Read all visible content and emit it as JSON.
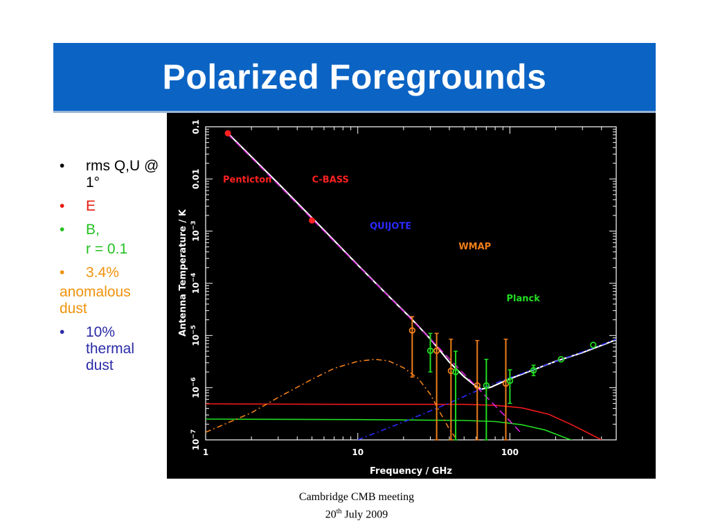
{
  "slide": {
    "title": "Polarized Foregrounds",
    "footer_line1": "Cambridge CMB meeting",
    "footer_day": "20",
    "footer_sup": "th",
    "footer_rest": " July 2009"
  },
  "bullets": [
    {
      "text": "rms Q,U @ 1°",
      "color": "#000000"
    },
    {
      "text": "E",
      "color": "#e8180e"
    },
    {
      "text": "B,",
      "color": "#22c020",
      "continuation": "r = 0.1"
    },
    {
      "text": "3.4%",
      "color": "#f0920a",
      "continuation": "anomalous dust"
    },
    {
      "text": "10% thermal dust",
      "color": "#2a2aa8"
    }
  ],
  "chart_data": {
    "type": "line",
    "xlabel": "Frequency / GHz",
    "ylabel": "Antenna Temperature / K",
    "xscale": "log",
    "yscale": "log",
    "xlim": [
      1,
      500
    ],
    "ylim": [
      1e-07,
      0.1
    ],
    "x_ticks": [
      {
        "value": 1,
        "label": "1"
      },
      {
        "value": 10,
        "label": "10"
      },
      {
        "value": 100,
        "label": "100"
      }
    ],
    "y_ticks": [
      {
        "value": 0.1,
        "label": "0.1",
        "sup": ""
      },
      {
        "value": 0.01,
        "label": "0.01",
        "sup": ""
      },
      {
        "value": 0.001,
        "label": "10",
        "sup": "−3"
      },
      {
        "value": 0.0001,
        "label": "10",
        "sup": "−4"
      },
      {
        "value": 1e-05,
        "label": "10",
        "sup": "−5"
      },
      {
        "value": 1e-06,
        "label": "10",
        "sup": "−6"
      },
      {
        "value": 1e-07,
        "label": "10",
        "sup": "−7"
      }
    ],
    "experiment_labels": [
      {
        "text": "Penticton",
        "x": 1.3,
        "y": 0.0085,
        "color": "#ff2020"
      },
      {
        "text": "C-BASS",
        "x": 5.0,
        "y": 0.0085,
        "color": "#ff2020"
      },
      {
        "text": "QUIJOTE",
        "x": 12,
        "y": 0.0011,
        "color": "#2a2aff"
      },
      {
        "text": "WMAP",
        "x": 46,
        "y": 0.00045,
        "color": "#f07f1a"
      },
      {
        "text": "Planck",
        "x": 95,
        "y": 4.5e-05,
        "color": "#22dd22"
      }
    ],
    "series": [
      {
        "style": "total",
        "color": "#ffffff",
        "x": [
          1.4,
          3,
          6,
          10,
          15,
          22,
          30,
          40,
          50,
          60,
          65,
          75,
          90,
          110,
          140,
          200,
          300,
          500
        ],
        "y": [
          0.075,
          0.0082,
          0.00105,
          0.000225,
          6.8e-05,
          2.25e-05,
          8.6e-06,
          3.1e-06,
          1.62e-06,
          1.06e-06,
          9.4e-07,
          1.02e-06,
          1.3e-06,
          1.65e-06,
          2.15e-06,
          3.2e-06,
          4.7e-06,
          8.3e-06
        ]
      },
      {
        "style": "synchrotron",
        "color": "#dd22dd",
        "x": [
          1.4,
          3,
          6,
          10,
          20,
          30,
          45,
          60,
          80,
          100,
          120
        ],
        "y": [
          0.072,
          0.0078,
          0.001,
          0.00022,
          2.9e-05,
          8.6e-06,
          2.5e-06,
          1.06e-06,
          4.5e-07,
          2.3e-07,
          1.3e-07
        ]
      },
      {
        "style": "anomalous-dust",
        "color": "#f07f1a",
        "x": [
          1,
          2,
          3,
          5,
          7,
          10,
          13,
          16,
          20,
          25,
          30,
          35,
          40,
          45
        ],
        "y": [
          1.4e-07,
          3.3e-07,
          6.5e-07,
          1.45e-06,
          2.35e-06,
          3.2e-06,
          3.5e-06,
          3.25e-06,
          2.4e-06,
          1.5e-06,
          7.5e-07,
          3.2e-07,
          1.6e-07,
          1e-07
        ]
      },
      {
        "style": "thermal-dust",
        "color": "#2a2aff",
        "x": [
          10,
          20,
          40,
          70,
          100,
          150,
          250,
          500
        ],
        "y": [
          1e-07,
          2.2e-07,
          5.1e-07,
          1.05e-06,
          1.55e-06,
          2.35e-06,
          4e-06,
          8.5e-06
        ]
      },
      {
        "style": "E-mode",
        "color": "#ee1a1a",
        "x": [
          1,
          10,
          50,
          80,
          120,
          180,
          250,
          320,
          400
        ],
        "y": [
          4.9e-07,
          4.8e-07,
          4.8e-07,
          4.6e-07,
          4.1e-07,
          3.1e-07,
          2e-07,
          1.4e-07,
          1e-07
        ]
      },
      {
        "style": "B-mode",
        "color": "#22dd22",
        "x": [
          1,
          10,
          50,
          80,
          120,
          170,
          240,
          300
        ],
        "y": [
          2.5e-07,
          2.45e-07,
          2.35e-07,
          2.25e-07,
          1.95e-07,
          1.55e-07,
          1.05e-07,
          8.5e-08
        ]
      }
    ],
    "points": [
      {
        "x": 1.4,
        "y": 0.075,
        "color": "#ff2020",
        "shape": "filled"
      },
      {
        "x": 5.0,
        "y": 0.0016,
        "color": "#ff2020",
        "shape": "filled"
      },
      {
        "x": 22.8,
        "y": 1.25e-05,
        "color": "#f07f1a",
        "shape": "open",
        "err": [
          1.6e-06,
          2.3e-05
        ]
      },
      {
        "x": 33,
        "y": 5.1e-06,
        "color": "#f07f1a",
        "shape": "open",
        "err": [
          1e-07,
          1.1e-05
        ]
      },
      {
        "x": 41,
        "y": 2.1e-06,
        "color": "#f07f1a",
        "shape": "open",
        "err": [
          1e-07,
          8.5e-06
        ]
      },
      {
        "x": 61,
        "y": 1.1e-06,
        "color": "#f07f1a",
        "shape": "open",
        "err": [
          1e-07,
          8e-06
        ]
      },
      {
        "x": 94,
        "y": 1.2e-06,
        "color": "#f07f1a",
        "shape": "open",
        "err": [
          1e-07,
          8.5e-06
        ]
      },
      {
        "x": 30,
        "y": 5.1e-06,
        "color": "#22dd22",
        "shape": "open",
        "err": [
          2e-06,
          1.1e-05
        ]
      },
      {
        "x": 44,
        "y": 2e-06,
        "color": "#22dd22",
        "shape": "open",
        "err": [
          1e-07,
          5e-06
        ]
      },
      {
        "x": 70,
        "y": 1.1e-06,
        "color": "#22dd22",
        "shape": "open",
        "err": [
          1e-07,
          3.5e-06
        ]
      },
      {
        "x": 100,
        "y": 1.35e-06,
        "color": "#22dd22",
        "shape": "open",
        "err": [
          5e-07,
          2.2e-06
        ]
      },
      {
        "x": 143,
        "y": 2.15e-06,
        "color": "#22dd22",
        "shape": "open",
        "err": [
          1.7e-06,
          2.7e-06
        ]
      },
      {
        "x": 217,
        "y": 3.5e-06,
        "color": "#22dd22",
        "shape": "open",
        "err": []
      },
      {
        "x": 353,
        "y": 6.6e-06,
        "color": "#22dd22",
        "shape": "open",
        "err": []
      }
    ]
  }
}
